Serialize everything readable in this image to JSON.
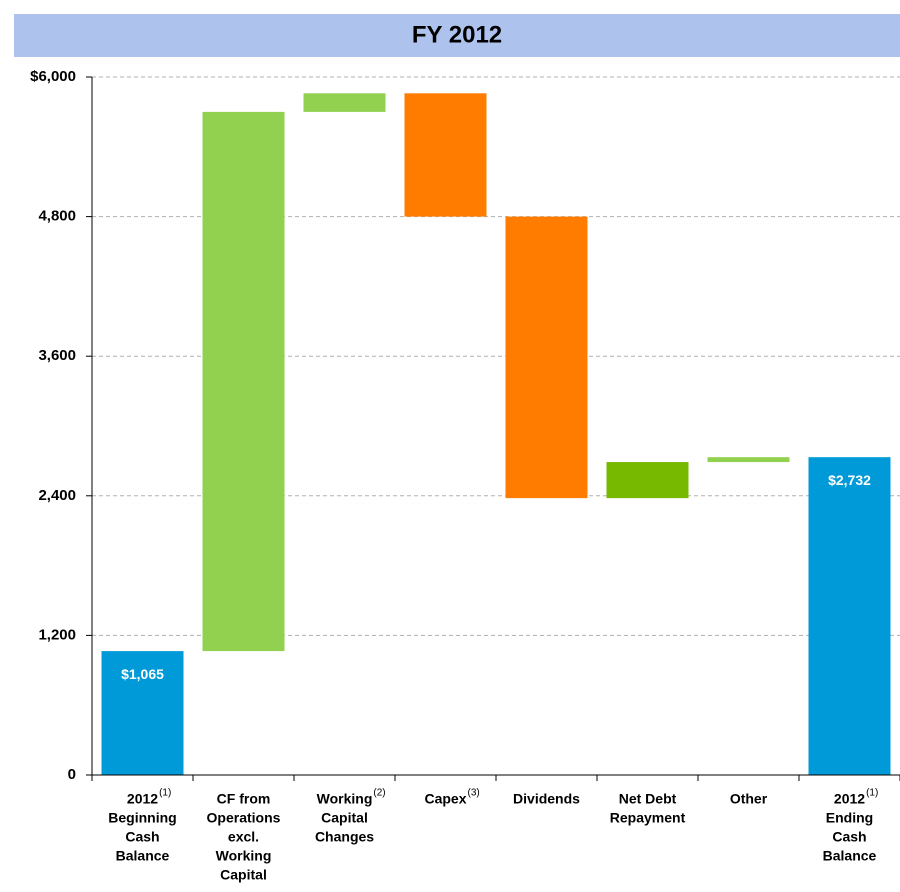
{
  "chart_data": {
    "type": "waterfall",
    "title": "FY 2012",
    "categories": [
      [
        "2012",
        "Beginning",
        "Cash",
        "Balance"
      ],
      [
        "CF from",
        "Operations",
        "excl.",
        "Working",
        "Capital"
      ],
      [
        "Working",
        "Capital",
        "Changes"
      ],
      [
        "Capex"
      ],
      [
        "Dividends"
      ],
      [
        "Net Debt",
        "Repayment"
      ],
      [
        "Other"
      ],
      [
        "2012",
        "Ending",
        "Cash",
        "Balance"
      ]
    ],
    "category_notes": [
      "(1)",
      null,
      "(2)",
      "(3)",
      null,
      null,
      null,
      "(1)"
    ],
    "measure": [
      "total",
      "relative",
      "relative",
      "relative",
      "relative",
      "relative",
      "relative",
      "total"
    ],
    "values": [
      1065,
      4635,
      160,
      -1060,
      -2420,
      310,
      42,
      2732
    ],
    "value_labels": [
      "$1,065",
      null,
      null,
      null,
      null,
      null,
      null,
      "$2,732"
    ],
    "colors": [
      "#009ad9",
      "#92d050",
      "#92d050",
      "#ff7c00",
      "#ff7c00",
      "#76b900",
      "#92d050",
      "#009ad9"
    ],
    "ylim": [
      0,
      6000
    ],
    "yticks": [
      0,
      {
        "value": 1200,
        "label": "1,200"
      },
      {
        "value": 2400,
        "label": "2,400"
      },
      {
        "value": 3600,
        "label": "3,600"
      },
      {
        "value": 4800,
        "label": "4,800"
      },
      {
        "value": 6000,
        "label": "$6,000"
      }
    ],
    "grid": true
  }
}
